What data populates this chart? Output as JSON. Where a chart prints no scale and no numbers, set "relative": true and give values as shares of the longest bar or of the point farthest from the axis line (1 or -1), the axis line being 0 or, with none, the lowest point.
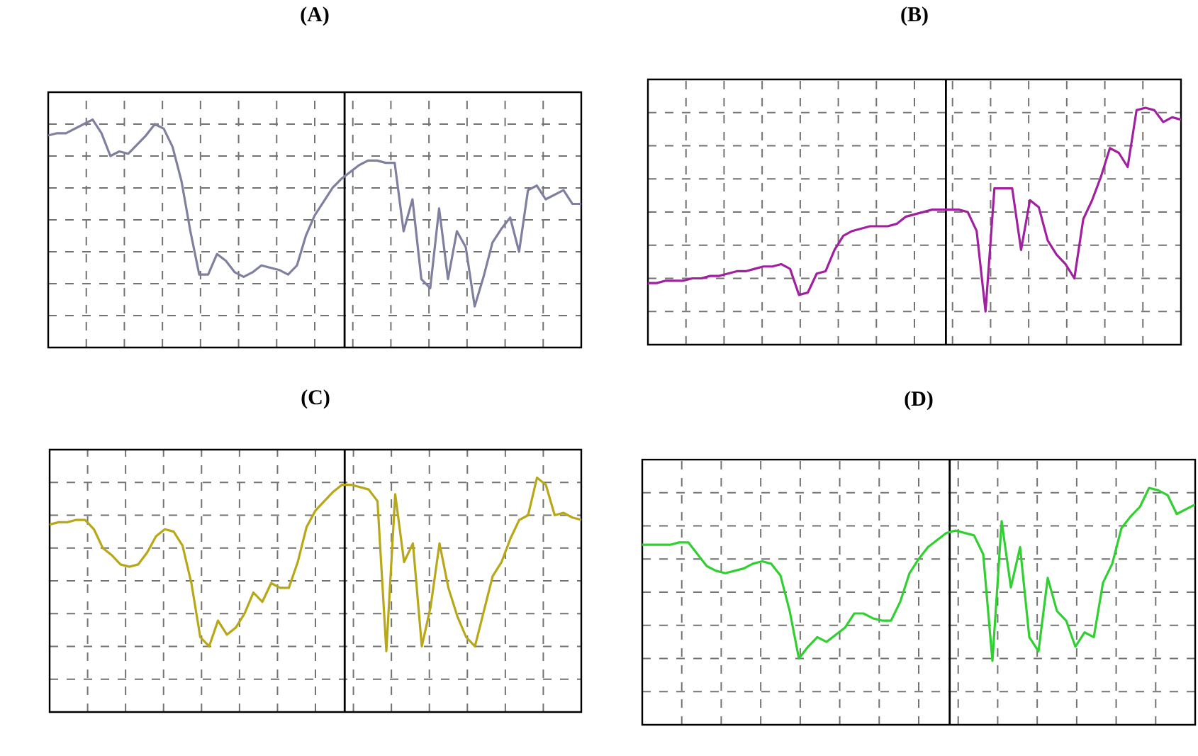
{
  "chart_data": [
    {
      "type": "line",
      "title": "(A)",
      "relative": true,
      "grid": true,
      "color": "#7f7f9f",
      "categories": [
        null,
        null,
        null,
        null,
        null,
        null,
        null,
        null,
        null,
        null,
        null,
        null,
        null,
        null,
        null,
        null,
        null,
        null,
        null,
        null,
        null,
        null,
        null,
        null,
        null,
        null,
        null,
        null,
        null,
        null,
        null,
        null,
        null,
        null,
        null,
        null,
        null,
        null,
        null,
        null,
        null,
        null,
        null,
        null,
        null,
        null,
        null,
        null,
        null,
        null,
        null,
        null,
        null,
        null,
        null,
        null,
        null,
        null,
        null,
        null,
        null
      ],
      "values": [
        0.93,
        0.94,
        0.94,
        0.96,
        0.98,
        1,
        0.94,
        0.84,
        0.86,
        0.85,
        0.89,
        0.93,
        0.98,
        0.96,
        0.88,
        0.73,
        0.51,
        0.32,
        0.32,
        0.41,
        0.38,
        0.33,
        0.31,
        0.33,
        0.36,
        0.35,
        0.34,
        0.32,
        0.36,
        0.49,
        0.58,
        0.64,
        0.7,
        0.74,
        0.77,
        0.8,
        0.82,
        0.82,
        0.81,
        0.81,
        0.51,
        0.65,
        0.3,
        0.26,
        0.61,
        0.3,
        0.51,
        0.44,
        0.18,
        0.31,
        0.46,
        0.52,
        0.57,
        0.42,
        0.69,
        0.71,
        0.65,
        0.67,
        0.69,
        0.63,
        0.63
      ]
    },
    {
      "type": "line",
      "title": "(B)",
      "relative": true,
      "grid": true,
      "color": "#a020a0",
      "categories": [
        null,
        null,
        null,
        null,
        null,
        null,
        null,
        null,
        null,
        null,
        null,
        null,
        null,
        null,
        null,
        null,
        null,
        null,
        null,
        null,
        null,
        null,
        null,
        null,
        null,
        null,
        null,
        null,
        null,
        null,
        null,
        null,
        null,
        null,
        null,
        null,
        null,
        null,
        null,
        null,
        null,
        null,
        null,
        null,
        null,
        null,
        null,
        null,
        null,
        null,
        null,
        null,
        null,
        null,
        null,
        null,
        null,
        null,
        null,
        null,
        null
      ],
      "values": [
        0.26,
        0.26,
        0.27,
        0.27,
        0.27,
        0.28,
        0.28,
        0.29,
        0.29,
        0.3,
        0.31,
        0.31,
        0.32,
        0.33,
        0.33,
        0.34,
        0.32,
        0.21,
        0.22,
        0.3,
        0.31,
        0.4,
        0.46,
        0.48,
        0.49,
        0.5,
        0.5,
        0.5,
        0.51,
        0.54,
        0.55,
        0.56,
        0.57,
        0.57,
        0.57,
        0.57,
        0.56,
        0.48,
        0.14,
        0.66,
        0.66,
        0.66,
        0.4,
        0.61,
        0.58,
        0.44,
        0.38,
        0.34,
        0.28,
        0.53,
        0.61,
        0.71,
        0.83,
        0.81,
        0.75,
        0.99,
        1,
        0.99,
        0.94,
        0.96,
        0.95
      ]
    },
    {
      "type": "line",
      "title": "(C)",
      "relative": true,
      "grid": true,
      "color": "#b8a818",
      "categories": [
        null,
        null,
        null,
        null,
        null,
        null,
        null,
        null,
        null,
        null,
        null,
        null,
        null,
        null,
        null,
        null,
        null,
        null,
        null,
        null,
        null,
        null,
        null,
        null,
        null,
        null,
        null,
        null,
        null,
        null,
        null,
        null,
        null,
        null,
        null,
        null,
        null,
        null,
        null,
        null,
        null,
        null,
        null,
        null,
        null,
        null,
        null,
        null,
        null,
        null,
        null,
        null,
        null,
        null,
        null,
        null,
        null,
        null,
        null,
        null,
        null
      ],
      "values": [
        0.8,
        0.81,
        0.81,
        0.82,
        0.82,
        0.78,
        0.7,
        0.67,
        0.63,
        0.62,
        0.63,
        0.68,
        0.75,
        0.78,
        0.77,
        0.71,
        0.55,
        0.32,
        0.28,
        0.39,
        0.33,
        0.36,
        0.42,
        0.51,
        0.47,
        0.55,
        0.53,
        0.53,
        0.64,
        0.79,
        0.86,
        0.9,
        0.94,
        0.97,
        0.97,
        0.96,
        0.95,
        0.9,
        0.26,
        0.93,
        0.64,
        0.72,
        0.28,
        0.45,
        0.72,
        0.53,
        0.41,
        0.32,
        0.28,
        0.43,
        0.58,
        0.64,
        0.74,
        0.82,
        0.84,
        1,
        0.97,
        0.84,
        0.85,
        0.83,
        0.82
      ]
    },
    {
      "type": "line",
      "title": "(D)",
      "relative": true,
      "grid": true,
      "color": "#30d030",
      "categories": [
        null,
        null,
        null,
        null,
        null,
        null,
        null,
        null,
        null,
        null,
        null,
        null,
        null,
        null,
        null,
        null,
        null,
        null,
        null,
        null,
        null,
        null,
        null,
        null,
        null,
        null,
        null,
        null,
        null,
        null,
        null,
        null,
        null,
        null,
        null,
        null,
        null,
        null,
        null,
        null,
        null,
        null,
        null,
        null,
        null,
        null,
        null,
        null,
        null,
        null,
        null,
        null,
        null,
        null,
        null,
        null,
        null,
        null,
        null,
        null,
        null
      ],
      "values": [
        0.76,
        0.76,
        0.76,
        0.76,
        0.77,
        0.77,
        0.72,
        0.67,
        0.65,
        0.64,
        0.65,
        0.66,
        0.68,
        0.69,
        0.68,
        0.63,
        0.48,
        0.28,
        0.33,
        0.37,
        0.35,
        0.38,
        0.41,
        0.47,
        0.47,
        0.45,
        0.44,
        0.44,
        0.52,
        0.64,
        0.7,
        0.75,
        0.78,
        0.81,
        0.82,
        0.81,
        0.8,
        0.72,
        0.27,
        0.86,
        0.58,
        0.75,
        0.37,
        0.31,
        0.62,
        0.48,
        0.44,
        0.33,
        0.39,
        0.37,
        0.6,
        0.68,
        0.83,
        0.88,
        0.92,
        1,
        0.99,
        0.97,
        0.89,
        0.91,
        0.93
      ]
    }
  ]
}
